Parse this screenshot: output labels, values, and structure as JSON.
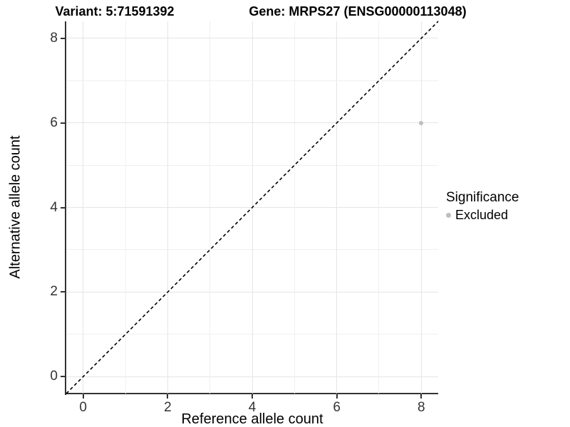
{
  "chart_data": {
    "type": "scatter",
    "titles": {
      "left": "Variant: 5:71591392",
      "right": "Gene: MRPS27 (ENSG00000113048)"
    },
    "xlabel": "Reference allele count",
    "ylabel": "Alternative allele count",
    "xlim": [
      -0.4,
      8.4
    ],
    "ylim": [
      -0.4,
      8.4
    ],
    "x_ticks": [
      0,
      2,
      4,
      6,
      8
    ],
    "y_ticks": [
      0,
      2,
      4,
      6,
      8
    ],
    "grid_values": [
      0,
      1,
      2,
      3,
      4,
      5,
      6,
      7,
      8
    ],
    "grid": true,
    "identity_line": {
      "style": "dashed",
      "from": [
        -0.4,
        -0.4
      ],
      "to": [
        8.4,
        8.4
      ],
      "color": "#000000"
    },
    "points": [
      {
        "x": 8,
        "y": 6,
        "significance": "Excluded",
        "color": "#bebebe"
      }
    ],
    "legend": {
      "title": "Significance",
      "position": "right",
      "items": [
        {
          "label": "Excluded",
          "color": "#bebebe",
          "marker": "circle"
        }
      ]
    },
    "colors": {
      "background": "#ffffff",
      "grid_major": "#e5e5e5",
      "grid_minor": "#f0f0f0",
      "axis": "#333333",
      "point": "#bebebe"
    }
  }
}
